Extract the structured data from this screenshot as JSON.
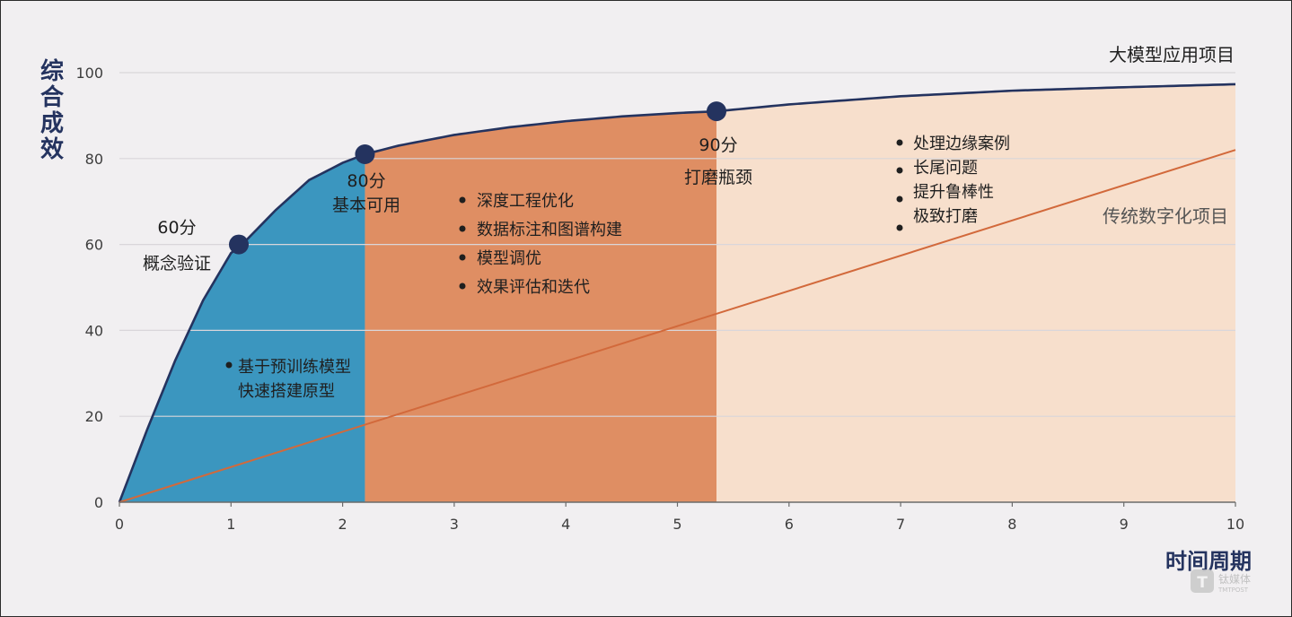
{
  "chart_data": {
    "type": "line",
    "ylabel": "综合成效",
    "xlabel": "时间周期",
    "xlim": [
      0,
      10
    ],
    "ylim": [
      0,
      100
    ],
    "x_ticks": [
      "0",
      "1",
      "2",
      "3",
      "4",
      "5",
      "6",
      "7",
      "8",
      "9",
      "10"
    ],
    "y_ticks": [
      "0",
      "20",
      "40",
      "60",
      "80",
      "100"
    ],
    "grid": "horizontal",
    "series": [
      {
        "name": "大模型应用项目",
        "color": "#24335f",
        "x": [
          0,
          0.25,
          0.5,
          0.75,
          1.0,
          1.1,
          1.4,
          1.7,
          2.0,
          2.2,
          2.5,
          3.0,
          3.5,
          4.0,
          4.5,
          5.0,
          5.35,
          6.0,
          7.0,
          8.0,
          9.0,
          10.0
        ],
        "y": [
          0,
          17,
          33,
          47,
          58,
          60,
          68,
          75,
          79,
          81,
          83,
          85.5,
          87.3,
          88.7,
          89.8,
          90.6,
          91,
          92.6,
          94.5,
          95.8,
          96.6,
          97.3
        ]
      },
      {
        "name": "传统数字化项目",
        "color": "#d2693b",
        "x": [
          0,
          10
        ],
        "y": [
          0,
          82
        ]
      }
    ],
    "regions": [
      {
        "x": [
          0,
          2.2
        ],
        "color": "#3b96bf"
      },
      {
        "x": [
          2.2,
          5.35
        ],
        "color": "#df8e63"
      },
      {
        "x": [
          5.35,
          10
        ],
        "color": "#f7dfcc"
      }
    ],
    "milestones": [
      {
        "x": 1.07,
        "y": 60,
        "score": "60分",
        "name": "概念验证"
      },
      {
        "x": 2.2,
        "y": 81,
        "score": "80分",
        "name": "基本可用"
      },
      {
        "x": 5.35,
        "y": 91,
        "score": "90分",
        "name": "打磨瓶颈"
      }
    ],
    "annotations": [
      {
        "stage": 1,
        "bullets": [
          "基于预训练模型"
        ],
        "continuation": "快速搭建原型"
      },
      {
        "stage": 2,
        "bullets": [
          "深度工程优化",
          "数据标注和图谱构建",
          "模型调优",
          "效果评估和迭代"
        ]
      },
      {
        "stage": 3,
        "bullets": [
          "处理边缘案例",
          "长尾问题",
          "提升鲁棒性",
          "极致打磨"
        ]
      }
    ]
  },
  "watermark": {
    "text": "钛媒体",
    "subtext": "TMTPOST"
  }
}
